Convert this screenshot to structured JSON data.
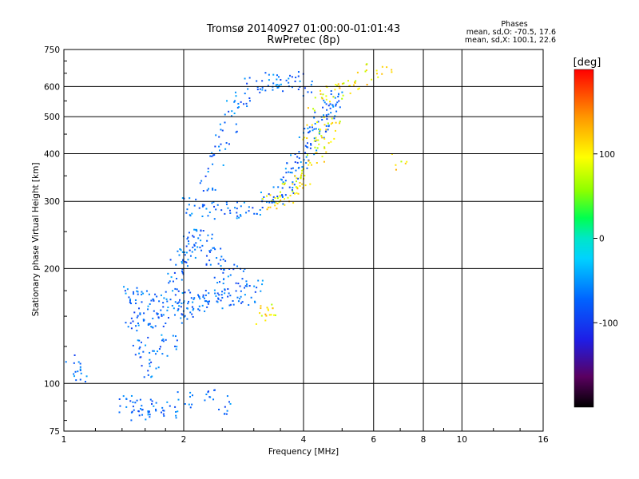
{
  "chart_data": {
    "type": "scatter",
    "title": "Tromsø 20140927 01:00:00-01:01:43",
    "subtitle": "RwPretec (8p)",
    "xlabel": "Frequency [MHz]",
    "ylabel": "Stationary phase Virtual Height [km]",
    "xscale": "log",
    "yscale": "log",
    "xlim": [
      1,
      16
    ],
    "ylim": [
      75,
      750
    ],
    "xticks": [
      1,
      2,
      4,
      6,
      10,
      16
    ],
    "xtick_labels": [
      "1",
      "2",
      "4",
      "6",
      "10",
      "16"
    ],
    "x_minor_ticks": [
      8
    ],
    "x_minor_labels": [
      "8"
    ],
    "xgrid": [
      2,
      4,
      6,
      8,
      10
    ],
    "yticks": [
      75,
      100,
      200,
      300,
      400,
      500,
      600,
      750
    ],
    "ytick_labels": [
      "75",
      "100",
      "200",
      "300",
      "400",
      "500",
      "600",
      "750"
    ],
    "ygrid": [
      100,
      200,
      300,
      400,
      500,
      600
    ],
    "grid": true,
    "legend": {
      "title": "Phases",
      "lines": [
        "mean, sd,O: -70.5, 17.6",
        "mean, sd,X: 100.1, 22.6"
      ],
      "position": "top-right"
    },
    "colorbar": {
      "label": "[deg]",
      "range": [
        -200,
        200
      ],
      "ticks": [
        100,
        0,
        -100
      ],
      "tick_labels": [
        "100",
        "0",
        "-100"
      ]
    },
    "series": [
      {
        "mode": "O",
        "phase_mean": -70.5,
        "phase_sd": 17.6,
        "trace": [
          [
            1.05,
            112
          ],
          [
            1.1,
            105
          ],
          [
            1.45,
            88
          ],
          [
            1.5,
            90
          ],
          [
            1.55,
            83
          ],
          [
            1.6,
            86
          ],
          [
            1.7,
            88
          ],
          [
            1.85,
            86
          ],
          [
            2.0,
            90
          ],
          [
            2.3,
            91
          ],
          [
            2.55,
            88
          ],
          [
            1.5,
            145
          ],
          [
            1.55,
            146
          ],
          [
            1.6,
            147
          ],
          [
            1.7,
            148
          ],
          [
            1.8,
            150
          ],
          [
            1.9,
            152
          ],
          [
            2.0,
            155
          ],
          [
            2.1,
            158
          ],
          [
            2.2,
            160
          ],
          [
            2.3,
            163
          ],
          [
            2.4,
            165
          ],
          [
            2.5,
            168
          ],
          [
            2.7,
            170
          ],
          [
            2.9,
            170
          ],
          [
            1.45,
            170
          ],
          [
            1.5,
            168
          ],
          [
            1.6,
            166
          ],
          [
            1.7,
            167
          ],
          [
            1.85,
            168
          ],
          [
            2.0,
            170
          ],
          [
            2.2,
            172
          ],
          [
            2.5,
            175
          ],
          [
            1.55,
            125
          ],
          [
            1.6,
            118
          ],
          [
            1.65,
            110
          ],
          [
            1.75,
            124
          ],
          [
            1.85,
            128
          ],
          [
            1.9,
            190
          ],
          [
            1.95,
            200
          ],
          [
            2.0,
            210
          ],
          [
            2.05,
            220
          ],
          [
            2.1,
            230
          ],
          [
            2.15,
            240
          ],
          [
            2.2,
            250
          ],
          [
            2.3,
            235
          ],
          [
            2.4,
            215
          ],
          [
            2.5,
            200
          ],
          [
            2.6,
            195
          ],
          [
            2.8,
            190
          ],
          [
            3.0,
            180
          ],
          [
            2.05,
            290
          ],
          [
            2.2,
            288
          ],
          [
            2.4,
            285
          ],
          [
            2.6,
            285
          ],
          [
            2.8,
            287
          ],
          [
            3.0,
            292
          ],
          [
            3.2,
            300
          ],
          [
            3.4,
            310
          ],
          [
            3.6,
            325
          ],
          [
            3.7,
            340
          ],
          [
            3.8,
            360
          ],
          [
            3.9,
            380
          ],
          [
            4.0,
            400
          ],
          [
            4.1,
            420
          ],
          [
            4.2,
            440
          ],
          [
            4.3,
            460
          ],
          [
            4.4,
            480
          ],
          [
            4.5,
            500
          ],
          [
            4.6,
            520
          ],
          [
            4.7,
            540
          ],
          [
            4.8,
            560
          ],
          [
            2.3,
            330
          ],
          [
            2.4,
            380
          ],
          [
            2.5,
            430
          ],
          [
            2.6,
            480
          ],
          [
            2.7,
            530
          ],
          [
            2.8,
            560
          ],
          [
            3.0,
            600
          ],
          [
            3.2,
            620
          ],
          [
            3.4,
            620
          ],
          [
            3.6,
            610
          ],
          [
            3.8,
            630
          ],
          [
            4.0,
            600
          ]
        ]
      },
      {
        "mode": "X",
        "phase_mean": 100.1,
        "phase_sd": 22.6,
        "trace": [
          [
            3.2,
            150
          ],
          [
            3.25,
            155
          ],
          [
            3.3,
            152
          ],
          [
            3.3,
            295
          ],
          [
            3.4,
            302
          ],
          [
            3.5,
            308
          ],
          [
            3.6,
            314
          ],
          [
            3.7,
            320
          ],
          [
            3.8,
            328
          ],
          [
            3.9,
            336
          ],
          [
            4.0,
            345
          ],
          [
            4.1,
            360
          ],
          [
            4.2,
            380
          ],
          [
            4.3,
            400
          ],
          [
            4.4,
            420
          ],
          [
            4.5,
            440
          ],
          [
            4.6,
            455
          ],
          [
            4.7,
            470
          ],
          [
            4.2,
            450
          ],
          [
            4.3,
            500
          ],
          [
            4.4,
            540
          ],
          [
            4.6,
            560
          ],
          [
            4.8,
            580
          ],
          [
            5.0,
            600
          ],
          [
            5.3,
            620
          ],
          [
            5.6,
            640
          ],
          [
            6.0,
            650
          ],
          [
            6.4,
            640
          ],
          [
            7.0,
            380
          ]
        ]
      }
    ]
  }
}
